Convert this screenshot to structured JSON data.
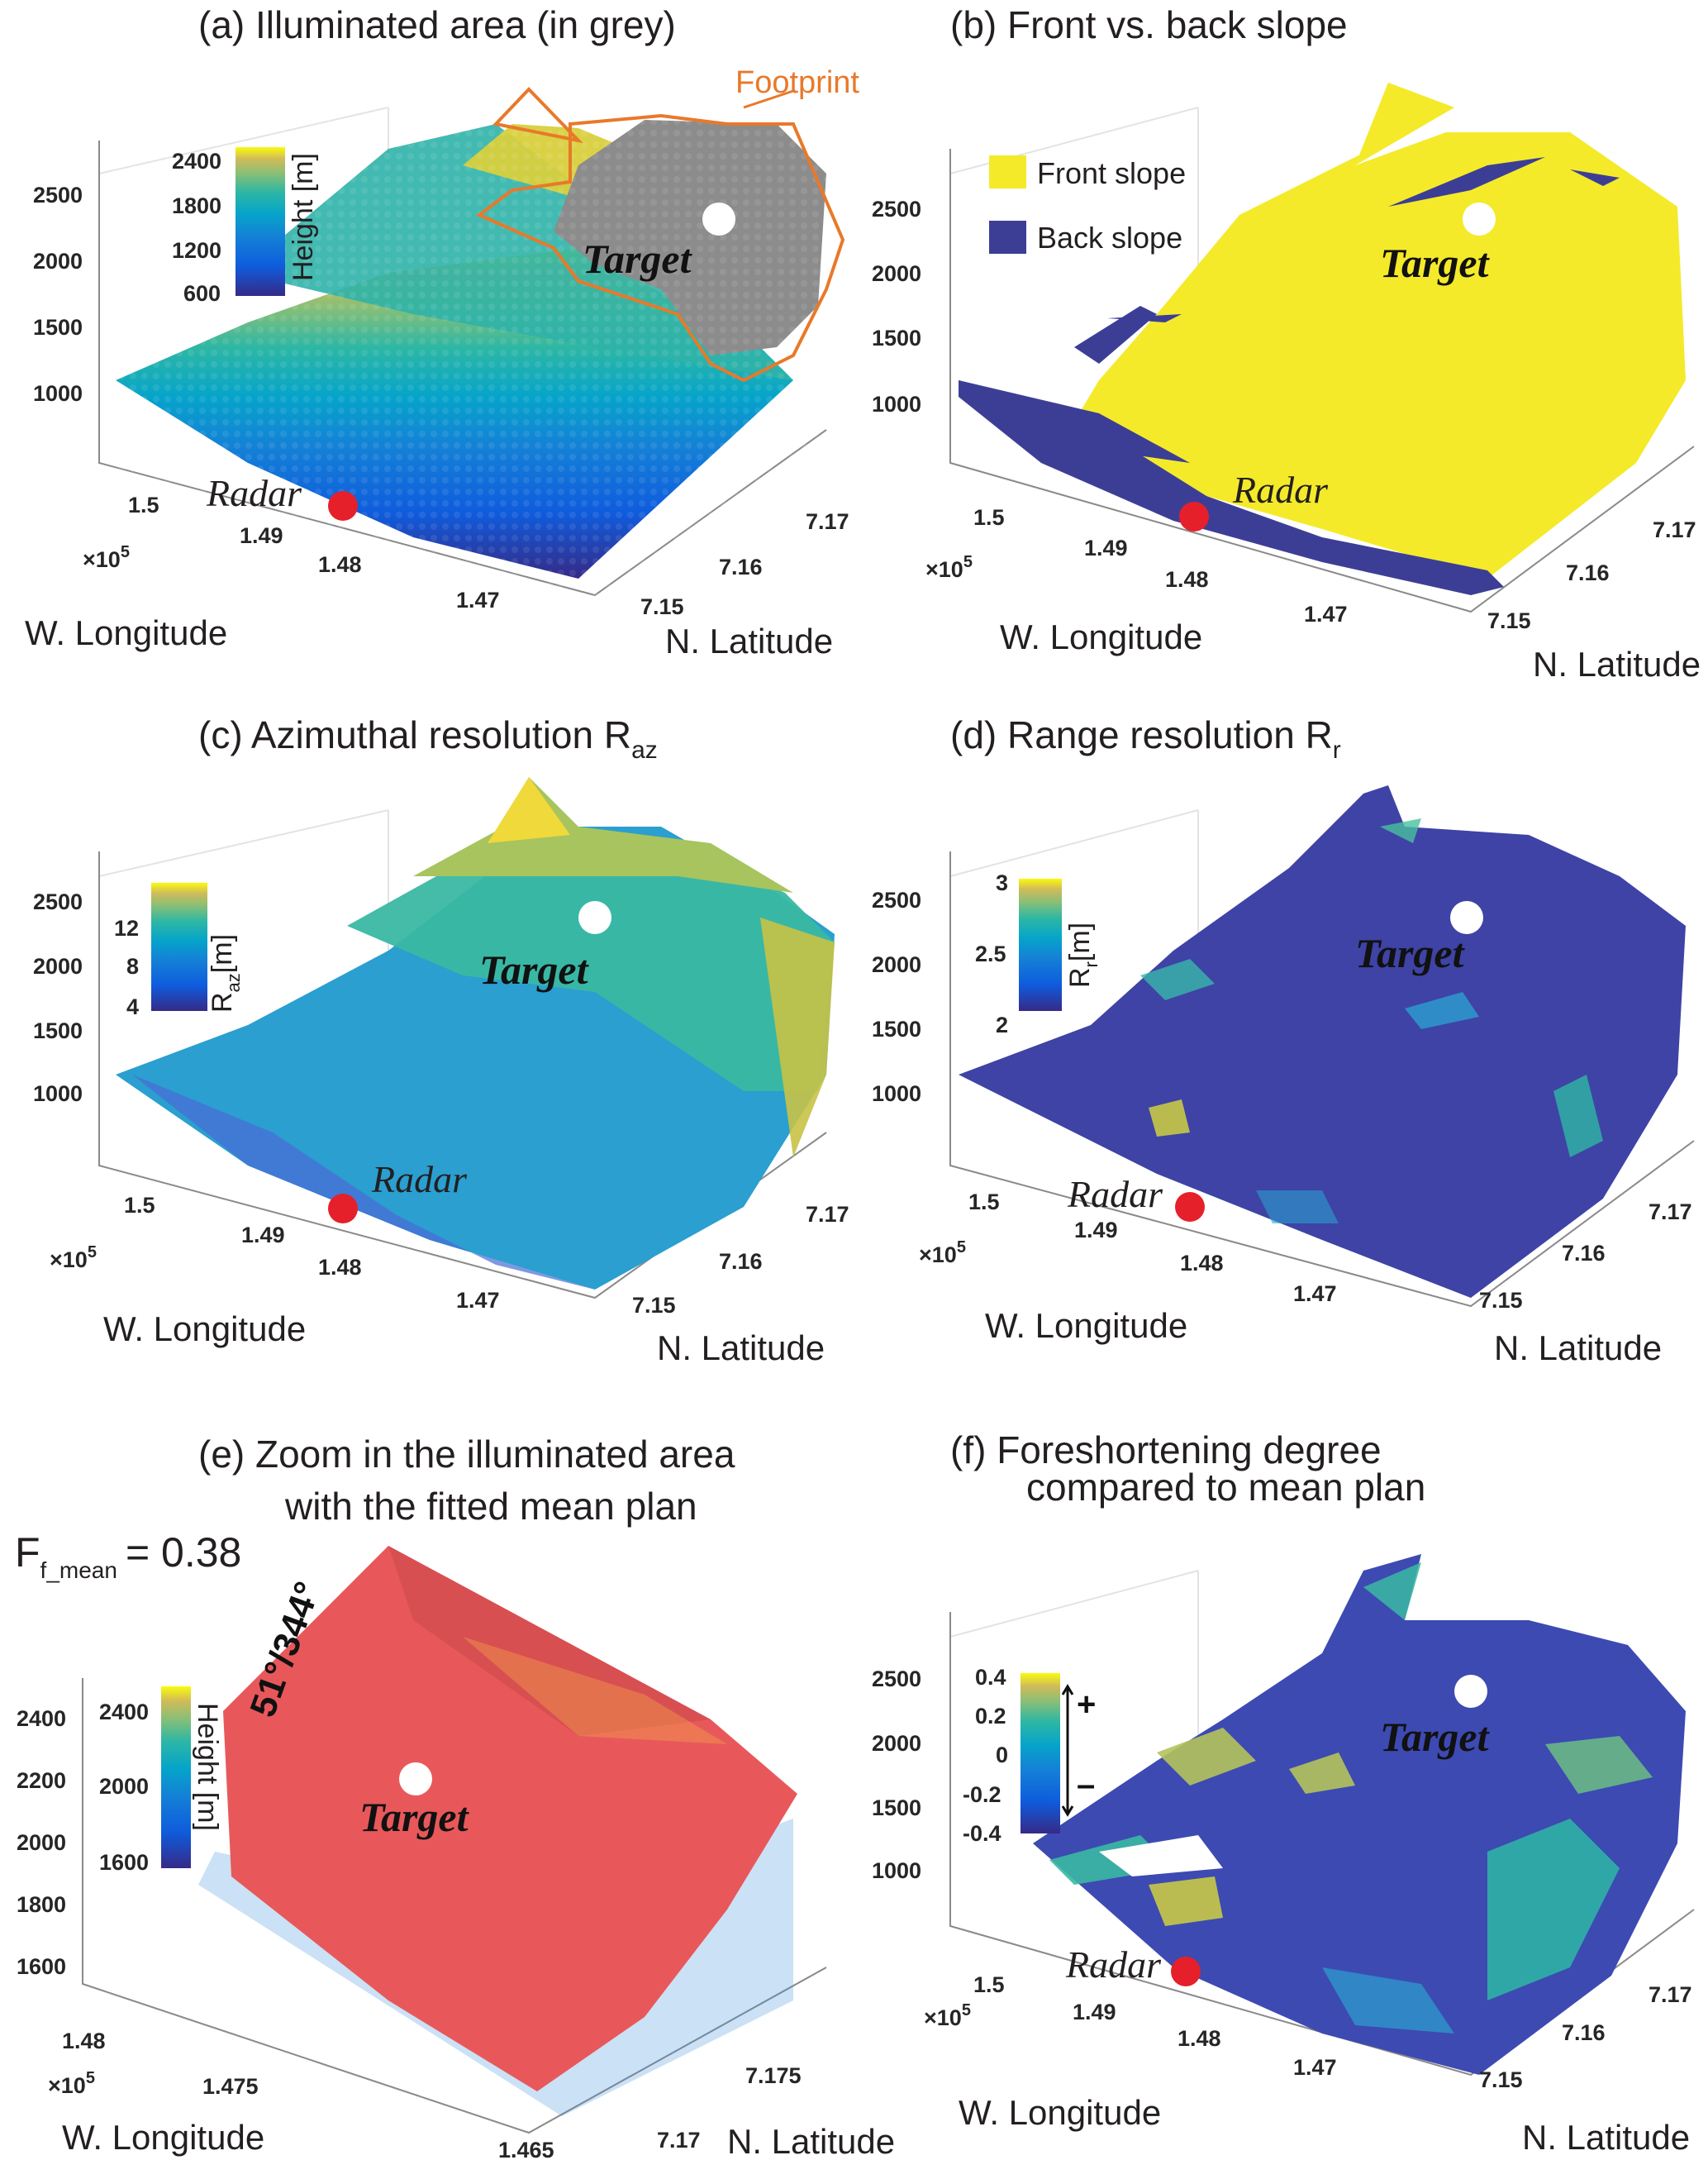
{
  "figure": {
    "colors": {
      "yellow": "#f4ea2a",
      "dark_blue": "#3c3e96",
      "grey": "#8c8c8c",
      "footprint": "#e8792a",
      "radar": "#e5202a",
      "plane": "#e8585a"
    },
    "panels": [
      {
        "id": "a",
        "title": "(a) Illuminated area (in grey)",
        "zlabel_ticks": [
          "2500",
          "2000",
          "1500",
          "1000"
        ],
        "lon_ticks": [
          "1.5",
          "1.49",
          "1.48",
          "1.47"
        ],
        "lat_ticks": [
          "7.17",
          "7.16",
          "7.15"
        ],
        "exponent": "×10",
        "exponent_power": "5",
        "xlabel": "W. Longitude",
        "ylabel": "N. Latitude",
        "colorbar": {
          "label": "Height [m]",
          "ticks": [
            "2400",
            "1800",
            "1200",
            "600"
          ]
        },
        "target_label": "Target",
        "radar_label": "Radar",
        "footprint_label": "Footprint"
      },
      {
        "id": "b",
        "title": "(b) Front vs. back slope",
        "zlabel_ticks": [
          "2500",
          "2000",
          "1500",
          "1000"
        ],
        "lon_ticks": [
          "1.5",
          "1.49",
          "1.48",
          "1.47"
        ],
        "lat_ticks": [
          "7.17",
          "7.16",
          "7.15"
        ],
        "exponent": "×10",
        "exponent_power": "5",
        "xlabel": "W. Longitude",
        "ylabel": "N. Latitude",
        "legend": [
          "Front slope",
          "Back slope"
        ],
        "target_label": "Target",
        "radar_label": "Radar"
      },
      {
        "id": "c",
        "title": "(c) Azimuthal resolution R",
        "title_sub": "az",
        "zlabel_ticks": [
          "2500",
          "2000",
          "1500",
          "1000"
        ],
        "lon_ticks": [
          "1.5",
          "1.49",
          "1.48",
          "1.47"
        ],
        "lat_ticks": [
          "7.17",
          "7.16",
          "7.15"
        ],
        "exponent": "×10",
        "exponent_power": "5",
        "xlabel": "W. Longitude",
        "ylabel": "N. Latitude",
        "colorbar": {
          "label": "R",
          "label_sub": "az",
          "label_unit": "[m]",
          "ticks": [
            "12",
            "8",
            "4"
          ]
        },
        "target_label": "Target",
        "radar_label": "Radar"
      },
      {
        "id": "d",
        "title": "(d) Range resolution R",
        "title_sub": "r",
        "zlabel_ticks": [
          "2500",
          "2000",
          "1500",
          "1000"
        ],
        "lon_ticks": [
          "1.5",
          "1.49",
          "1.48",
          "1.47"
        ],
        "lat_ticks": [
          "7.17",
          "7.16",
          "7.15"
        ],
        "exponent": "×10",
        "exponent_power": "5",
        "xlabel": "W. Longitude",
        "ylabel": "N. Latitude",
        "colorbar": {
          "label": "R",
          "label_sub": "r",
          "label_unit": "[m]",
          "ticks": [
            "3",
            "2.5",
            "2"
          ]
        },
        "target_label": "Target",
        "radar_label": "Radar"
      },
      {
        "id": "e",
        "title_line1": "(e) Zoom in the illuminated area",
        "title_line2": "with the fitted mean plan",
        "metric_symbol": "F",
        "metric_sub": "f_mean",
        "metric_value": "= 0.38",
        "orientation": "51°/344°",
        "zlabel_ticks": [
          "2400",
          "2200",
          "2000",
          "1800",
          "1600"
        ],
        "lon_ticks": [
          "1.48",
          "1.475",
          "1.465"
        ],
        "lat_ticks": [
          "7.175",
          "7.17"
        ],
        "exponent": "×10",
        "exponent_power": "5",
        "xlabel": "W. Longitude",
        "ylabel": "N. Latitude",
        "colorbar": {
          "label": "Height [m]",
          "ticks": [
            "2400",
            "2000",
            "1600"
          ]
        },
        "target_label": "Target"
      },
      {
        "id": "f",
        "title_line1": "(f) Foreshortening degree",
        "title_line2": "compared to mean plan",
        "zlabel_ticks": [
          "2500",
          "2000",
          "1500",
          "1000"
        ],
        "lon_ticks": [
          "1.5",
          "1.49",
          "1.48",
          "1.47"
        ],
        "lat_ticks": [
          "7.17",
          "7.16",
          "7.15"
        ],
        "exponent": "×10",
        "exponent_power": "5",
        "xlabel": "W. Longitude",
        "ylabel": "N. Latitude",
        "colorbar": {
          "ticks": [
            "0.4",
            "0.2",
            "0",
            "-0.2",
            "-0.4"
          ],
          "plus": "+",
          "minus": "–"
        },
        "target_label": "Target",
        "radar_label": "Radar"
      }
    ]
  },
  "chart_data": [
    {
      "type": "scatter",
      "title": "(a) Illuminated area (in grey)",
      "xlabel": "W. Longitude",
      "ylabel": "N. Latitude",
      "zlabel": "Height [m]",
      "xlim": [
        146500,
        150500
      ],
      "ylim": [
        7.15,
        7.17
      ],
      "zlim": [
        600,
        2600
      ],
      "color_range": [
        600,
        2400
      ]
    },
    {
      "type": "scatter",
      "title": "(b) Front vs. back slope",
      "xlabel": "W. Longitude",
      "ylabel": "N. Latitude",
      "categories": [
        "Front slope",
        "Back slope"
      ]
    },
    {
      "type": "scatter",
      "title": "(c) Azimuthal resolution Raz",
      "xlabel": "W. Longitude",
      "ylabel": "N. Latitude",
      "color_range": [
        2,
        14
      ],
      "color_label": "Raz [m]"
    },
    {
      "type": "scatter",
      "title": "(d) Range resolution Rr",
      "xlabel": "W. Longitude",
      "ylabel": "N. Latitude",
      "color_range": [
        2,
        3
      ],
      "color_label": "Rr [m]"
    },
    {
      "type": "scatter",
      "title": "(e) Zoom in the illuminated area with the fitted mean plan",
      "xlabel": "W. Longitude",
      "ylabel": "N. Latitude",
      "color_range": [
        1500,
        2500
      ],
      "color_label": "Height [m]",
      "Ff_mean": 0.38,
      "plane_orientation": "51°/344°"
    },
    {
      "type": "scatter",
      "title": "(f) Foreshortening degree compared to mean plan",
      "xlabel": "W. Longitude",
      "ylabel": "N. Latitude",
      "color_range": [
        -0.4,
        0.4
      ]
    }
  ]
}
